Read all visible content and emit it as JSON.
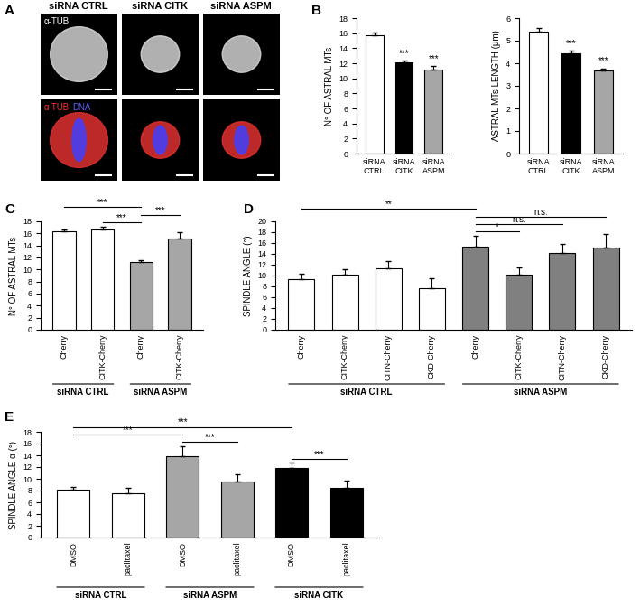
{
  "panel_a": {
    "panel": "A",
    "columns": [
      "siRNA CTRL",
      "siRNA CITK",
      "siRNA ASPM"
    ],
    "row_labels": [
      [
        "α-TUB"
      ],
      [
        "α-TUB",
        "DNA"
      ]
    ]
  },
  "chart_data": [
    {
      "panel": "B",
      "type": "bar",
      "ylabel": "N° OF ASTRAL MTs",
      "categories": [
        "siRNA\nCTRL",
        "siRNA\nCITK",
        "siRNA\nASPM"
      ],
      "values": [
        15.7,
        12.1,
        11.2
      ],
      "errors": [
        0.4,
        0.3,
        0.4
      ],
      "colors": [
        "#ffffff",
        "#000000",
        "#a6a6a6"
      ],
      "ylim": [
        0,
        18
      ],
      "yticks": [
        0,
        2,
        4,
        6,
        8,
        10,
        12,
        14,
        16,
        18
      ],
      "annotations": [
        {
          "text": "***",
          "at": 1
        },
        {
          "text": "***",
          "at": 2
        }
      ]
    },
    {
      "type": "bar",
      "ylabel": "ASTRAL MTs LENGTH (μm)",
      "categories": [
        "siRNA\nCTRL",
        "siRNA\nCITK",
        "siRNA\nASPM"
      ],
      "values": [
        5.4,
        4.45,
        3.7
      ],
      "errors": [
        0.15,
        0.1,
        0.08
      ],
      "colors": [
        "#ffffff",
        "#000000",
        "#a6a6a6"
      ],
      "ylim": [
        0,
        6
      ],
      "yticks": [
        0,
        1,
        2,
        3,
        4,
        5,
        6
      ],
      "annotations": [
        {
          "text": "***",
          "at": 1
        },
        {
          "text": "***",
          "at": 2
        }
      ]
    },
    {
      "panel": "C",
      "type": "bar",
      "ylabel": "N° OF ASTRAL MTs",
      "categories": [
        "Cherry",
        "CITK-Cherry",
        "Cherry",
        "CITK-Cherry"
      ],
      "values": [
        16.3,
        16.6,
        11.3,
        15.2
      ],
      "errors": [
        0.3,
        0.5,
        0.3,
        1.0
      ],
      "colors": [
        "#ffffff",
        "#ffffff",
        "#a6a6a6",
        "#a6a6a6"
      ],
      "ylim": [
        0,
        18
      ],
      "yticks": [
        0,
        2,
        4,
        6,
        8,
        10,
        12,
        14,
        16,
        18
      ],
      "groups": [
        {
          "label": "siRNA CTRL",
          "start": 0,
          "end": 1
        },
        {
          "label": "siRNA ASPM",
          "start": 2,
          "end": 3
        }
      ],
      "annotations": [
        {
          "text": "***",
          "from": 0,
          "to": 2
        },
        {
          "text": "***",
          "from": 1,
          "to": 2
        },
        {
          "text": "***",
          "from": 2,
          "to": 3
        }
      ]
    },
    {
      "panel": "D",
      "type": "bar",
      "ylabel": "SPINDLE ANGLE (°)",
      "categories": [
        "Cherry",
        "CITK-Cherry",
        "CITN-Cherry",
        "CKD-Cherry",
        "Cherry",
        "CITK-Cherry",
        "CITN-Cherry",
        "CKD-Cherry"
      ],
      "values": [
        9.4,
        10.2,
        11.4,
        7.7,
        15.3,
        10.2,
        14.2,
        15.2
      ],
      "errors": [
        1.0,
        0.9,
        1.3,
        1.8,
        2.0,
        1.3,
        1.7,
        2.4
      ],
      "colors": [
        "#ffffff",
        "#ffffff",
        "#ffffff",
        "#ffffff",
        "#808080",
        "#808080",
        "#808080",
        "#808080"
      ],
      "ylim": [
        0,
        20
      ],
      "yticks": [
        0,
        2,
        4,
        6,
        8,
        10,
        12,
        14,
        16,
        18,
        20
      ],
      "groups": [
        {
          "label": "siRNA CTRL",
          "start": 0,
          "end": 3
        },
        {
          "label": "siRNA ASPM",
          "start": 4,
          "end": 7
        }
      ],
      "annotations": [
        {
          "text": "**",
          "from": 0,
          "to": 4
        },
        {
          "text": "*",
          "from": 4,
          "to": 5
        },
        {
          "text": "n.s.",
          "from": 4,
          "to": 6
        },
        {
          "text": "n.s.",
          "from": 4,
          "to": 7
        }
      ]
    },
    {
      "panel": "E",
      "type": "bar",
      "ylabel": "SPINDLE ANGLE α (°)",
      "categories": [
        "DMSO",
        "paclitaxel",
        "DMSO",
        "paclitaxel",
        "DMSO",
        "paclitaxel"
      ],
      "values": [
        8.1,
        7.5,
        13.9,
        9.5,
        11.8,
        8.4
      ],
      "errors": [
        0.5,
        0.9,
        1.7,
        1.2,
        0.9,
        1.3
      ],
      "colors": [
        "#ffffff",
        "#ffffff",
        "#a6a6a6",
        "#a6a6a6",
        "#000000",
        "#000000"
      ],
      "ylim": [
        0,
        18
      ],
      "yticks": [
        0,
        2,
        4,
        6,
        8,
        10,
        12,
        14,
        16,
        18
      ],
      "groups": [
        {
          "label": "siRNA CTRL",
          "start": 0,
          "end": 1
        },
        {
          "label": "siRNA ASPM",
          "start": 2,
          "end": 3
        },
        {
          "label": "siRNA CITK",
          "start": 4,
          "end": 5
        }
      ],
      "annotations": [
        {
          "text": "***",
          "from": 0,
          "to": 2
        },
        {
          "text": "***",
          "from": 0,
          "to": 4
        },
        {
          "text": "***",
          "from": 2,
          "to": 3
        },
        {
          "text": "***",
          "from": 4,
          "to": 5
        }
      ]
    }
  ]
}
